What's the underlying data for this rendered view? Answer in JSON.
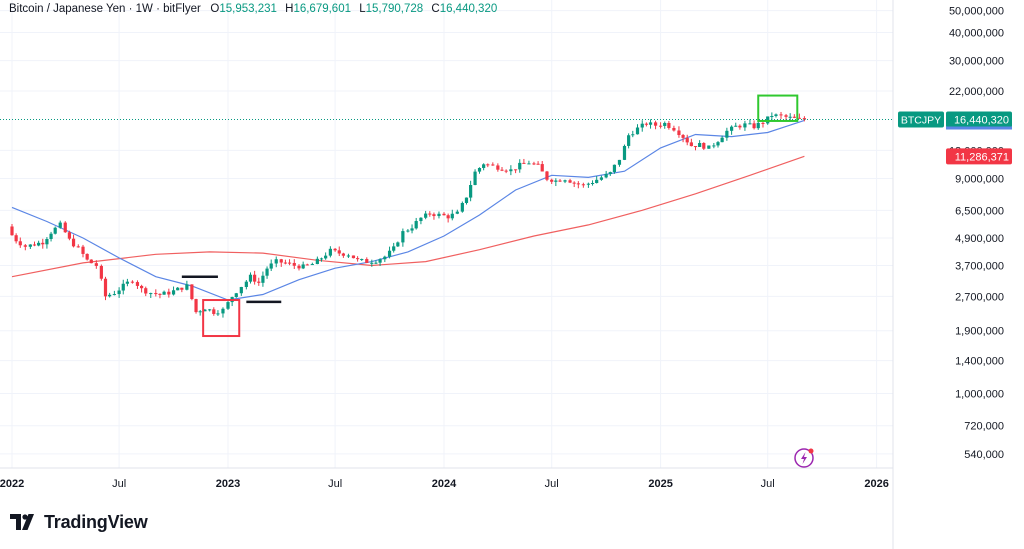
{
  "header": {
    "symbol_name": "Bitcoin / Japanese Yen",
    "interval": "1W",
    "exchange": "bitFlyer",
    "open_label": "O",
    "open": "15,953,231",
    "high_label": "H",
    "high": "16,679,601",
    "low_label": "L",
    "low": "15,790,728",
    "close_label": "C",
    "close": "16,440,320"
  },
  "brand": {
    "name": "TradingView"
  },
  "price_tags": [
    {
      "ticker": "BTCJPY",
      "value": "16,440,320",
      "color": "#089981",
      "price": 16440320
    },
    {
      "value": "11,286,371",
      "color": "#f23645",
      "price": 11286371
    }
  ],
  "colors": {
    "up": "#089981",
    "down": "#f23645",
    "ma_short": "#5b86e5",
    "ma_long": "#f06060",
    "box_red": "#f23645",
    "box_green": "#2fc82f"
  },
  "chart_data": {
    "type": "candlestick",
    "title": "Bitcoin / Japanese Yen · 1W · bitFlyer",
    "y_scale": "log",
    "y_ticks": [
      {
        "v": 50000000,
        "label": "50,000,000"
      },
      {
        "v": 40000000,
        "label": "40,000,000"
      },
      {
        "v": 30000000,
        "label": "30,000,000"
      },
      {
        "v": 22000000,
        "label": "22,000,000"
      },
      {
        "v": 12000000,
        "label": "12,000,000"
      },
      {
        "v": 9000000,
        "label": "9,000,000"
      },
      {
        "v": 6500000,
        "label": "6,500,000"
      },
      {
        "v": 4900000,
        "label": "4,900,000"
      },
      {
        "v": 3700000,
        "label": "3,700,000"
      },
      {
        "v": 2700000,
        "label": "2,700,000"
      },
      {
        "v": 1900000,
        "label": "1,900,000"
      },
      {
        "v": 1400000,
        "label": "1,400,000"
      },
      {
        "v": 1000000,
        "label": "1,000,000"
      },
      {
        "v": 720000,
        "label": "720,000"
      },
      {
        "v": 540000,
        "label": "540,000"
      }
    ],
    "x_ticks": [
      {
        "date": "2022-01-01",
        "label": "2022"
      },
      {
        "date": "2022-07-01",
        "label": "Jul"
      },
      {
        "date": "2023-01-01",
        "label": "2023"
      },
      {
        "date": "2023-07-01",
        "label": "Jul"
      },
      {
        "date": "2024-01-01",
        "label": "2024"
      },
      {
        "date": "2024-07-01",
        "label": "Jul"
      },
      {
        "date": "2025-01-01",
        "label": "2025"
      },
      {
        "date": "2025-07-01",
        "label": "Jul"
      },
      {
        "date": "2026-01-01",
        "label": "2026"
      }
    ],
    "x_range": [
      "2022-01-01",
      "2026-09-01"
    ],
    "close_series": [
      [
        "2022-01-01",
        5300000
      ],
      [
        "2022-01-15",
        4800000
      ],
      [
        "2022-02-01",
        4500000
      ],
      [
        "2022-02-15",
        4600000
      ],
      [
        "2022-03-01",
        4700000
      ],
      [
        "2022-03-15",
        5200000
      ],
      [
        "2022-04-01",
        5600000
      ],
      [
        "2022-04-15",
        4800000
      ],
      [
        "2022-05-01",
        4400000
      ],
      [
        "2022-05-15",
        3900000
      ],
      [
        "2022-06-01",
        3700000
      ],
      [
        "2022-06-15",
        2700000
      ],
      [
        "2022-07-01",
        2800000
      ],
      [
        "2022-07-15",
        3000000
      ],
      [
        "2022-08-01",
        3200000
      ],
      [
        "2022-08-15",
        2900000
      ],
      [
        "2022-09-01",
        2800000
      ],
      [
        "2022-09-15",
        2750000
      ],
      [
        "2022-10-01",
        2800000
      ],
      [
        "2022-10-15",
        2900000
      ],
      [
        "2022-11-01",
        3000000
      ],
      [
        "2022-11-15",
        2300000
      ],
      [
        "2022-12-01",
        2400000
      ],
      [
        "2022-12-15",
        2300000
      ],
      [
        "2023-01-01",
        2350000
      ],
      [
        "2023-01-15",
        2700000
      ],
      [
        "2023-02-01",
        3000000
      ],
      [
        "2023-02-15",
        3300000
      ],
      [
        "2023-03-01",
        3100000
      ],
      [
        "2023-03-15",
        3600000
      ],
      [
        "2023-04-01",
        3850000
      ],
      [
        "2023-04-15",
        3800000
      ],
      [
        "2023-05-01",
        3700000
      ],
      [
        "2023-05-15",
        3650000
      ],
      [
        "2023-06-01",
        3750000
      ],
      [
        "2023-06-15",
        4000000
      ],
      [
        "2023-07-01",
        4300000
      ],
      [
        "2023-07-15",
        4200000
      ],
      [
        "2023-08-01",
        4150000
      ],
      [
        "2023-08-15",
        3900000
      ],
      [
        "2023-09-01",
        3850000
      ],
      [
        "2023-09-15",
        3900000
      ],
      [
        "2023-10-01",
        4050000
      ],
      [
        "2023-10-15",
        4400000
      ],
      [
        "2023-11-01",
        5200000
      ],
      [
        "2023-11-15",
        5500000
      ],
      [
        "2023-12-01",
        6000000
      ],
      [
        "2023-12-15",
        6300000
      ],
      [
        "2024-01-01",
        6200000
      ],
      [
        "2024-01-15",
        6100000
      ],
      [
        "2024-02-01",
        6300000
      ],
      [
        "2024-02-15",
        7500000
      ],
      [
        "2024-03-01",
        9600000
      ],
      [
        "2024-03-15",
        10500000
      ],
      [
        "2024-04-01",
        10200000
      ],
      [
        "2024-04-15",
        10000000
      ],
      [
        "2024-05-01",
        9800000
      ],
      [
        "2024-05-15",
        10300000
      ],
      [
        "2024-06-01",
        10600000
      ],
      [
        "2024-06-15",
        10200000
      ],
      [
        "2024-07-01",
        9000000
      ],
      [
        "2024-07-15",
        8800000
      ],
      [
        "2024-08-01",
        9000000
      ],
      [
        "2024-08-15",
        8600000
      ],
      [
        "2024-09-01",
        8400000
      ],
      [
        "2024-09-15",
        8700000
      ],
      [
        "2024-10-01",
        9100000
      ],
      [
        "2024-10-15",
        9500000
      ],
      [
        "2024-11-01",
        11000000
      ],
      [
        "2024-11-15",
        14000000
      ],
      [
        "2024-12-01",
        15000000
      ],
      [
        "2024-12-15",
        15800000
      ],
      [
        "2025-01-01",
        15500000
      ],
      [
        "2025-01-15",
        15800000
      ],
      [
        "2025-02-01",
        15000000
      ],
      [
        "2025-02-15",
        13800000
      ],
      [
        "2025-03-01",
        12600000
      ],
      [
        "2025-03-15",
        12700000
      ],
      [
        "2025-04-01",
        12300000
      ],
      [
        "2025-04-15",
        13300000
      ],
      [
        "2025-05-01",
        14600000
      ],
      [
        "2025-05-15",
        15300000
      ],
      [
        "2025-06-01",
        15600000
      ],
      [
        "2025-06-15",
        15300000
      ],
      [
        "2025-07-01",
        16000000
      ],
      [
        "2025-07-15",
        17200000
      ],
      [
        "2025-08-01",
        17000000
      ],
      [
        "2025-08-15",
        16700000
      ],
      [
        "2025-09-01",
        16440320
      ]
    ],
    "ma_short": [
      [
        "2022-01-01",
        6700000
      ],
      [
        "2022-03-01",
        5800000
      ],
      [
        "2022-05-01",
        4900000
      ],
      [
        "2022-07-01",
        4000000
      ],
      [
        "2022-09-01",
        3300000
      ],
      [
        "2022-11-01",
        3000000
      ],
      [
        "2023-01-01",
        2600000
      ],
      [
        "2023-03-01",
        2750000
      ],
      [
        "2023-05-01",
        3200000
      ],
      [
        "2023-07-01",
        3600000
      ],
      [
        "2023-09-01",
        3850000
      ],
      [
        "2023-11-01",
        4250000
      ],
      [
        "2024-01-01",
        5000000
      ],
      [
        "2024-03-01",
        6200000
      ],
      [
        "2024-05-01",
        8000000
      ],
      [
        "2024-07-01",
        9300000
      ],
      [
        "2024-09-01",
        9100000
      ],
      [
        "2024-11-01",
        9700000
      ],
      [
        "2025-01-01",
        12300000
      ],
      [
        "2025-03-01",
        14100000
      ],
      [
        "2025-05-01",
        13800000
      ],
      [
        "2025-07-01",
        14400000
      ],
      [
        "2025-09-01",
        16300000
      ]
    ],
    "ma_long": [
      [
        "2022-01-01",
        3300000
      ],
      [
        "2022-05-01",
        3800000
      ],
      [
        "2022-09-01",
        4150000
      ],
      [
        "2022-12-01",
        4250000
      ],
      [
        "2023-03-01",
        4200000
      ],
      [
        "2023-06-01",
        3900000
      ],
      [
        "2023-09-01",
        3700000
      ],
      [
        "2023-12-01",
        3850000
      ],
      [
        "2024-03-01",
        4350000
      ],
      [
        "2024-06-01",
        5000000
      ],
      [
        "2024-09-01",
        5600000
      ],
      [
        "2024-12-01",
        6500000
      ],
      [
        "2025-03-01",
        7700000
      ],
      [
        "2025-06-01",
        9300000
      ],
      [
        "2025-09-01",
        11286371
      ]
    ],
    "annotations": [
      {
        "type": "box",
        "color": "red",
        "x_range": [
          "2022-11-20",
          "2023-01-20"
        ],
        "y_range": [
          1800000,
          2600000
        ]
      },
      {
        "type": "box",
        "color": "green",
        "x_range": [
          "2025-06-15",
          "2025-08-20"
        ],
        "y_range": [
          16200000,
          21000000
        ]
      },
      {
        "type": "hline",
        "x_range": [
          "2022-10-15",
          "2022-12-15"
        ],
        "y": 3300000
      },
      {
        "type": "hline",
        "x_range": [
          "2023-02-01",
          "2023-04-01"
        ],
        "y": 2550000
      }
    ]
  }
}
